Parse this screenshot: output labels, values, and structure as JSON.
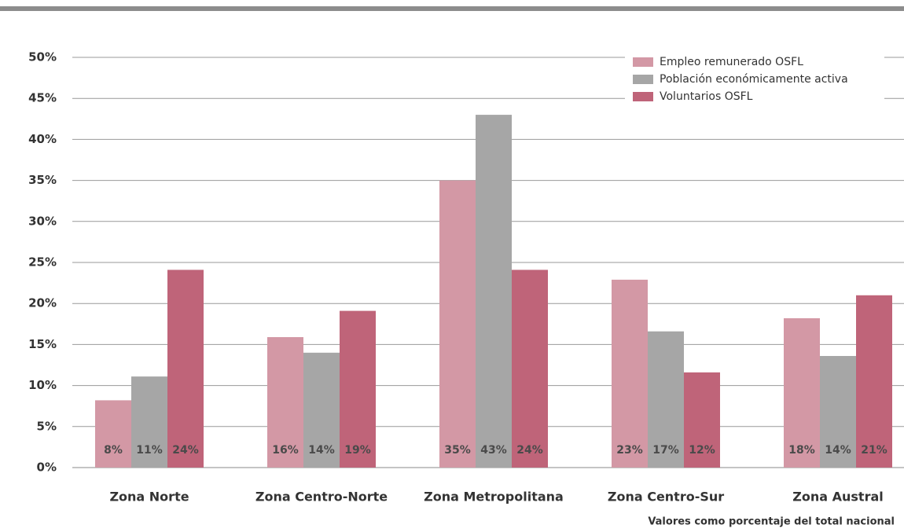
{
  "chart_data": {
    "type": "bar",
    "categories": [
      "Zona Norte",
      "Zona Centro-Norte",
      "Zona Metropolitana",
      "Zona Centro-Sur",
      "Zona Austral"
    ],
    "series": [
      {
        "name": "Empleo remunerado OSFL",
        "color": "#d398a5",
        "values": [
          8.2,
          15.9,
          35,
          22.9,
          18.2
        ],
        "value_labels": [
          "8%",
          "16%",
          "35%",
          "23%",
          "18%"
        ]
      },
      {
        "name": "Población económicamente activa",
        "color": "#a6a6a6",
        "values": [
          11.1,
          14,
          43,
          16.6,
          13.6
        ],
        "value_labels": [
          "11%",
          "14%",
          "43%",
          "17%",
          "14%"
        ]
      },
      {
        "name": "Voluntarios OSFL",
        "color": "#bf6479",
        "values": [
          24.1,
          19.1,
          24.1,
          11.6,
          21
        ],
        "value_labels": [
          "24%",
          "19%",
          "24%",
          "12%",
          "21%"
        ]
      }
    ],
    "ylim": [
      0,
      50
    ],
    "yticks": [
      {
        "value": 0,
        "label": "0%"
      },
      {
        "value": 5,
        "label": "5%"
      },
      {
        "value": 10,
        "label": "10%"
      },
      {
        "value": 15,
        "label": "15%"
      },
      {
        "value": 20,
        "label": "20%"
      },
      {
        "value": 25,
        "label": "25%"
      },
      {
        "value": 30,
        "label": "30%"
      },
      {
        "value": 35,
        "label": "35%"
      },
      {
        "value": 40,
        "label": "40%"
      },
      {
        "value": 45,
        "label": "45%"
      },
      {
        "value": 50,
        "label": "50%"
      }
    ],
    "grid": true,
    "legend": "upper right",
    "note": "Valores como porcentaje del total nacional"
  }
}
